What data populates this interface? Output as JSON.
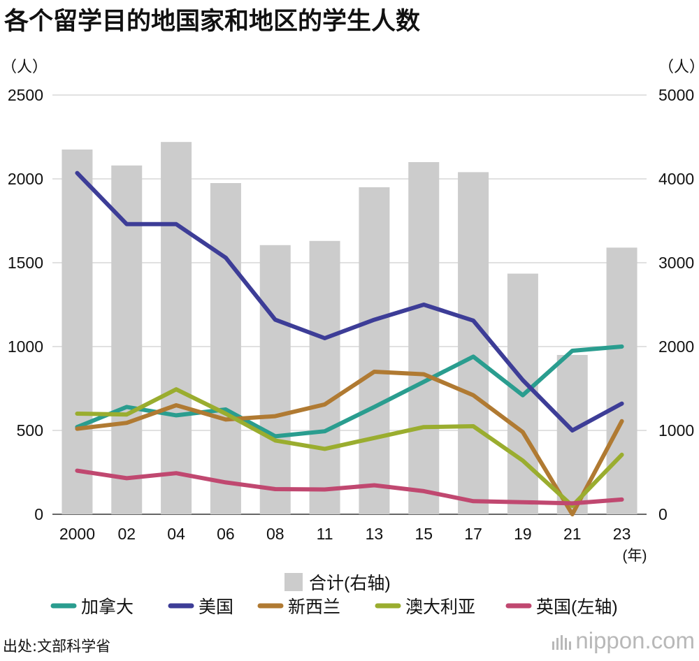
{
  "title": "各个留学目的地国家和地区的学生人数",
  "source": "出处:文部科学省",
  "logo": "nippon.com",
  "chart_data": {
    "type": "bar+line",
    "unit_left": "（人）",
    "unit_right": "（人）",
    "x_unit": "(年)",
    "categories": [
      "2000",
      "02",
      "04",
      "06",
      "08",
      "11",
      "13",
      "15",
      "17",
      "19",
      "21",
      "23"
    ],
    "y_left": {
      "min": 0,
      "max": 2500,
      "ticks": [
        0,
        500,
        1000,
        1500,
        2000,
        2500
      ]
    },
    "y_right": {
      "min": 0,
      "max": 5000,
      "ticks": [
        0,
        1000,
        2000,
        3000,
        4000,
        5000
      ]
    },
    "bars": {
      "name": "合计(右轴)",
      "axis": "right",
      "color": "#cccccc",
      "values": [
        4350,
        4160,
        4440,
        3950,
        3210,
        3260,
        3900,
        4200,
        4080,
        2870,
        1900,
        3180
      ]
    },
    "series": [
      {
        "name": "加拿大",
        "axis": "left",
        "color": "#2a9d8f",
        "values": [
          520,
          640,
          590,
          625,
          465,
          495,
          640,
          790,
          940,
          710,
          975,
          1000
        ]
      },
      {
        "name": "美国",
        "axis": "left",
        "color": "#3d3d97",
        "values": [
          2035,
          1730,
          1730,
          1530,
          1160,
          1050,
          1160,
          1250,
          1155,
          800,
          500,
          660
        ]
      },
      {
        "name": "新西兰",
        "axis": "left",
        "color": "#b07a32",
        "values": [
          510,
          545,
          650,
          565,
          585,
          655,
          850,
          835,
          710,
          490,
          0,
          555
        ]
      },
      {
        "name": "澳大利亚",
        "axis": "left",
        "color": "#9aad2f",
        "values": [
          600,
          595,
          745,
          600,
          440,
          390,
          455,
          520,
          525,
          320,
          50,
          355
        ]
      },
      {
        "name": "英国(左轴)",
        "axis": "left",
        "color": "#c04870",
        "values": [
          260,
          215,
          245,
          190,
          150,
          148,
          173,
          138,
          78,
          72,
          65,
          88
        ]
      }
    ]
  }
}
